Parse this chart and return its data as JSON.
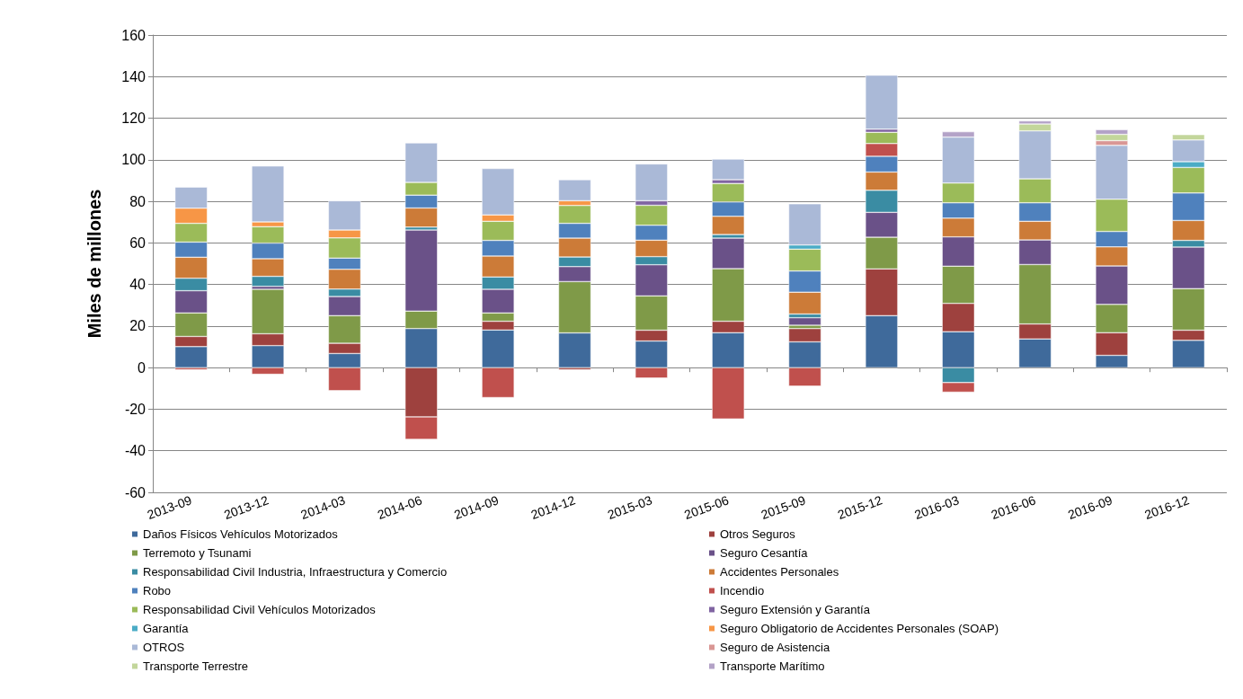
{
  "chart_data": {
    "type": "bar",
    "stacked": true,
    "ylabel": "Miles de millones",
    "categories": [
      "2013-09",
      "2013-12",
      "2014-03",
      "2014-06",
      "2014-09",
      "2014-12",
      "2015-03",
      "2015-06",
      "2015-09",
      "2015-12",
      "2016-03",
      "2016-06",
      "2016-09",
      "2016-12"
    ],
    "ylim": [
      -60,
      160
    ],
    "yticks": [
      -60,
      -40,
      -20,
      0,
      20,
      40,
      60,
      80,
      100,
      120,
      140,
      160
    ],
    "grid": "y",
    "legend": "bottom",
    "series": [
      {
        "name": "Daños Físicos Vehículos Motorizados",
        "color": "#3f6a9b",
        "values": [
          10.1,
          10.6,
          6.8,
          18.8,
          18.1,
          16.7,
          12.8,
          16.8,
          12.4,
          25.0,
          17.3,
          13.8,
          5.9,
          13.1
        ]
      },
      {
        "name": "Otros Seguros",
        "color": "#9e413e",
        "values": [
          4.9,
          5.7,
          4.9,
          -23.7,
          4.2,
          -1.0,
          5.2,
          5.5,
          6.4,
          22.5,
          13.6,
          7.2,
          10.9,
          4.9
        ]
      },
      {
        "name": "Terremoto y Tsunami",
        "color": "#7f9a48",
        "values": [
          11.3,
          21.4,
          13.3,
          8.4,
          4.0,
          24.7,
          16.5,
          25.3,
          1.6,
          15.2,
          17.9,
          28.6,
          13.6,
          20.0
        ]
      },
      {
        "name": "Seguro Cesantía",
        "color": "#6a5188",
        "values": [
          10.7,
          1.4,
          9.2,
          39.0,
          11.4,
          7.2,
          15.0,
          14.7,
          3.6,
          12.0,
          14.1,
          11.8,
          18.5,
          20.0
        ]
      },
      {
        "name": "Responsabilidad Civil Industria, Infraestructura y Comercio",
        "color": "#3a8ca3",
        "values": [
          6.0,
          4.8,
          3.6,
          1.4,
          5.9,
          4.6,
          3.9,
          1.7,
          1.8,
          10.6,
          -7.2,
          null,
          null,
          3.2
        ]
      },
      {
        "name": "Accidentes Personales",
        "color": "#cc7b38",
        "values": [
          10.1,
          8.5,
          9.5,
          9.2,
          10.1,
          9.1,
          7.9,
          8.8,
          10.5,
          8.8,
          9.0,
          9.0,
          9.2,
          9.6
        ]
      },
      {
        "name": "Robo",
        "color": "#4f81bd",
        "values": [
          7.3,
          7.5,
          5.4,
          6.2,
          7.5,
          7.1,
          7.2,
          6.9,
          10.2,
          7.6,
          7.4,
          8.9,
          7.4,
          13.2
        ]
      },
      {
        "name": "Incendio",
        "color": "#c0504d",
        "values": [
          -1.0,
          -3.2,
          -11.1,
          -10.8,
          -14.4,
          null,
          -5.0,
          -24.7,
          -8.9,
          6.1,
          -4.6,
          null,
          null,
          null
        ]
      },
      {
        "name": "Responsabilidad Civil Vehículos Motorizados",
        "color": "#9bbb59",
        "values": [
          9.0,
          7.9,
          9.7,
          6.1,
          9.2,
          8.6,
          9.6,
          8.9,
          10.5,
          5.4,
          9.5,
          11.5,
          15.5,
          12.3
        ]
      },
      {
        "name": "Seguro Extensión y Garantía",
        "color": "#8064a2",
        "values": [
          null,
          null,
          null,
          null,
          null,
          null,
          2.2,
          1.8,
          null,
          1.5,
          null,
          null,
          null,
          null
        ]
      },
      {
        "name": "Garantía",
        "color": "#4bacc6",
        "values": [
          null,
          null,
          null,
          null,
          null,
          null,
          null,
          null,
          2.0,
          null,
          null,
          null,
          null,
          2.8
        ]
      },
      {
        "name": "Seguro Obligatorio de Accidentes Personales (SOAP)",
        "color": "#f79646",
        "values": [
          7.3,
          2.3,
          3.8,
          null,
          3.1,
          2.3,
          null,
          null,
          null,
          null,
          null,
          null,
          null,
          null
        ]
      },
      {
        "name": "OTROS",
        "color": "#aab9d7",
        "values": [
          10.2,
          26.9,
          14.1,
          19.0,
          22.3,
          10.1,
          17.7,
          9.9,
          19.8,
          26.0,
          22.1,
          23.1,
          25.9,
          10.4
        ]
      },
      {
        "name": "Seguro de Asistencia",
        "color": "#d99694",
        "values": [
          null,
          null,
          null,
          null,
          null,
          null,
          null,
          null,
          null,
          null,
          null,
          null,
          2.3,
          null
        ]
      },
      {
        "name": "Transporte Terrestre",
        "color": "#c3d69b",
        "values": [
          null,
          null,
          null,
          null,
          null,
          null,
          null,
          null,
          null,
          null,
          null,
          3.3,
          3.0,
          2.6
        ]
      },
      {
        "name": "Transporte Marítimo",
        "color": "#b3a2c7",
        "values": [
          null,
          null,
          null,
          null,
          null,
          null,
          null,
          null,
          null,
          null,
          2.6,
          1.5,
          2.3,
          null
        ]
      }
    ]
  }
}
